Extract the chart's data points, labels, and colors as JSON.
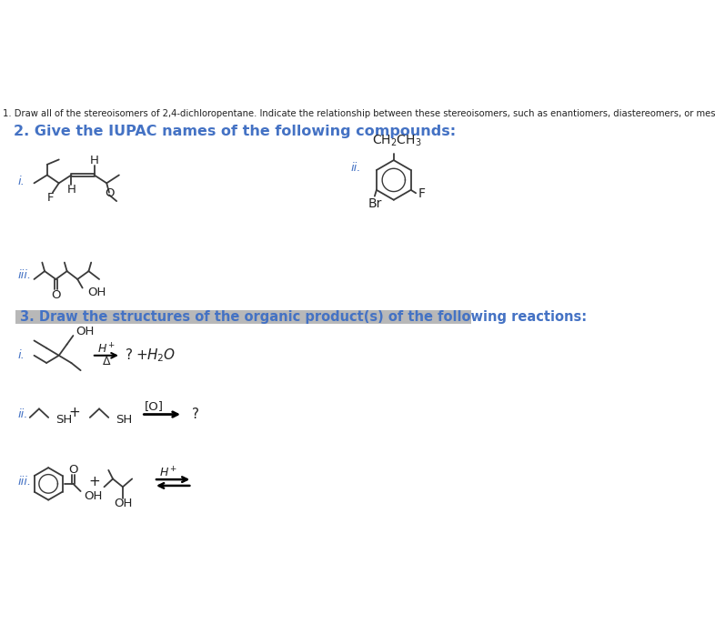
{
  "title_q1": "1. Draw all of the stereoisomers of 2,4-dichloropentane. Indicate the relationship between these stereoisomers, such as enantiomers, diastereomers, or meso compounds.",
  "title_q2": "2. Give the IUPAC names of the following compounds:",
  "title_q3": "3. Draw the structures of the organic product(s) of the following reactions:",
  "bg_color": "#ffffff",
  "text_color": "#222222",
  "q2_color": "#4472c4",
  "q3_color": "#4472c4",
  "bond_color": "#3a3a3a",
  "atom_color": "#222222",
  "highlight_bg": "#b0b0b0"
}
